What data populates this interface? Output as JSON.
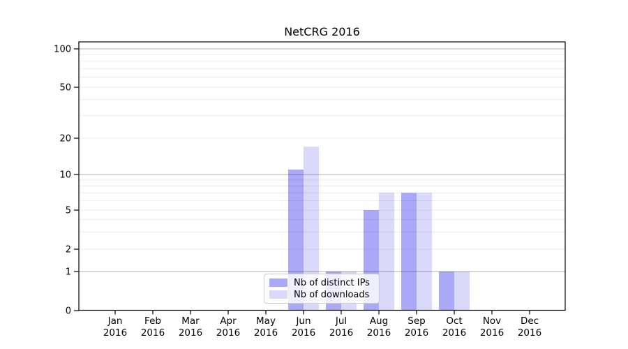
{
  "title": "NetCRG 2016",
  "chart_data": {
    "type": "bar",
    "title": "NetCRG 2016",
    "categories": [
      "Jan 2016",
      "Feb 2016",
      "Mar 2016",
      "Apr 2016",
      "May 2016",
      "Jun 2016",
      "Jul 2016",
      "Aug 2016",
      "Sep 2016",
      "Oct 2016",
      "Nov 2016",
      "Dec 2016"
    ],
    "series": [
      {
        "name": "Nb of distinct IPs",
        "color": "#a9a9f7",
        "values": [
          0,
          0,
          0,
          0,
          0,
          11,
          1,
          5,
          7,
          1,
          0,
          0
        ]
      },
      {
        "name": "Nb of downloads",
        "color": "#d9d9f9",
        "values": [
          0,
          0,
          0,
          0,
          0,
          17,
          1,
          7,
          7,
          1,
          0,
          0
        ]
      }
    ],
    "xlabel": "",
    "ylabel": "",
    "y_axis": {
      "scale": "log (linear segment below 1)",
      "tick_values": [
        0,
        1,
        2,
        5,
        10,
        20,
        50,
        100
      ],
      "tick_labels": [
        "0",
        "1",
        "2",
        "5",
        "10",
        "20",
        "50",
        "100"
      ],
      "ylim": [
        0,
        114
      ],
      "major_grid_values": [
        1,
        10,
        100
      ],
      "minor_grid_values": [
        2,
        3,
        4,
        5,
        6,
        7,
        8,
        9,
        20,
        30,
        40,
        50,
        60,
        70,
        80,
        90
      ]
    },
    "grid": true,
    "legend": {
      "visible": true,
      "position": "lower center-left inside plot",
      "entries": [
        "Nb of distinct IPs",
        "Nb of downloads"
      ]
    }
  }
}
